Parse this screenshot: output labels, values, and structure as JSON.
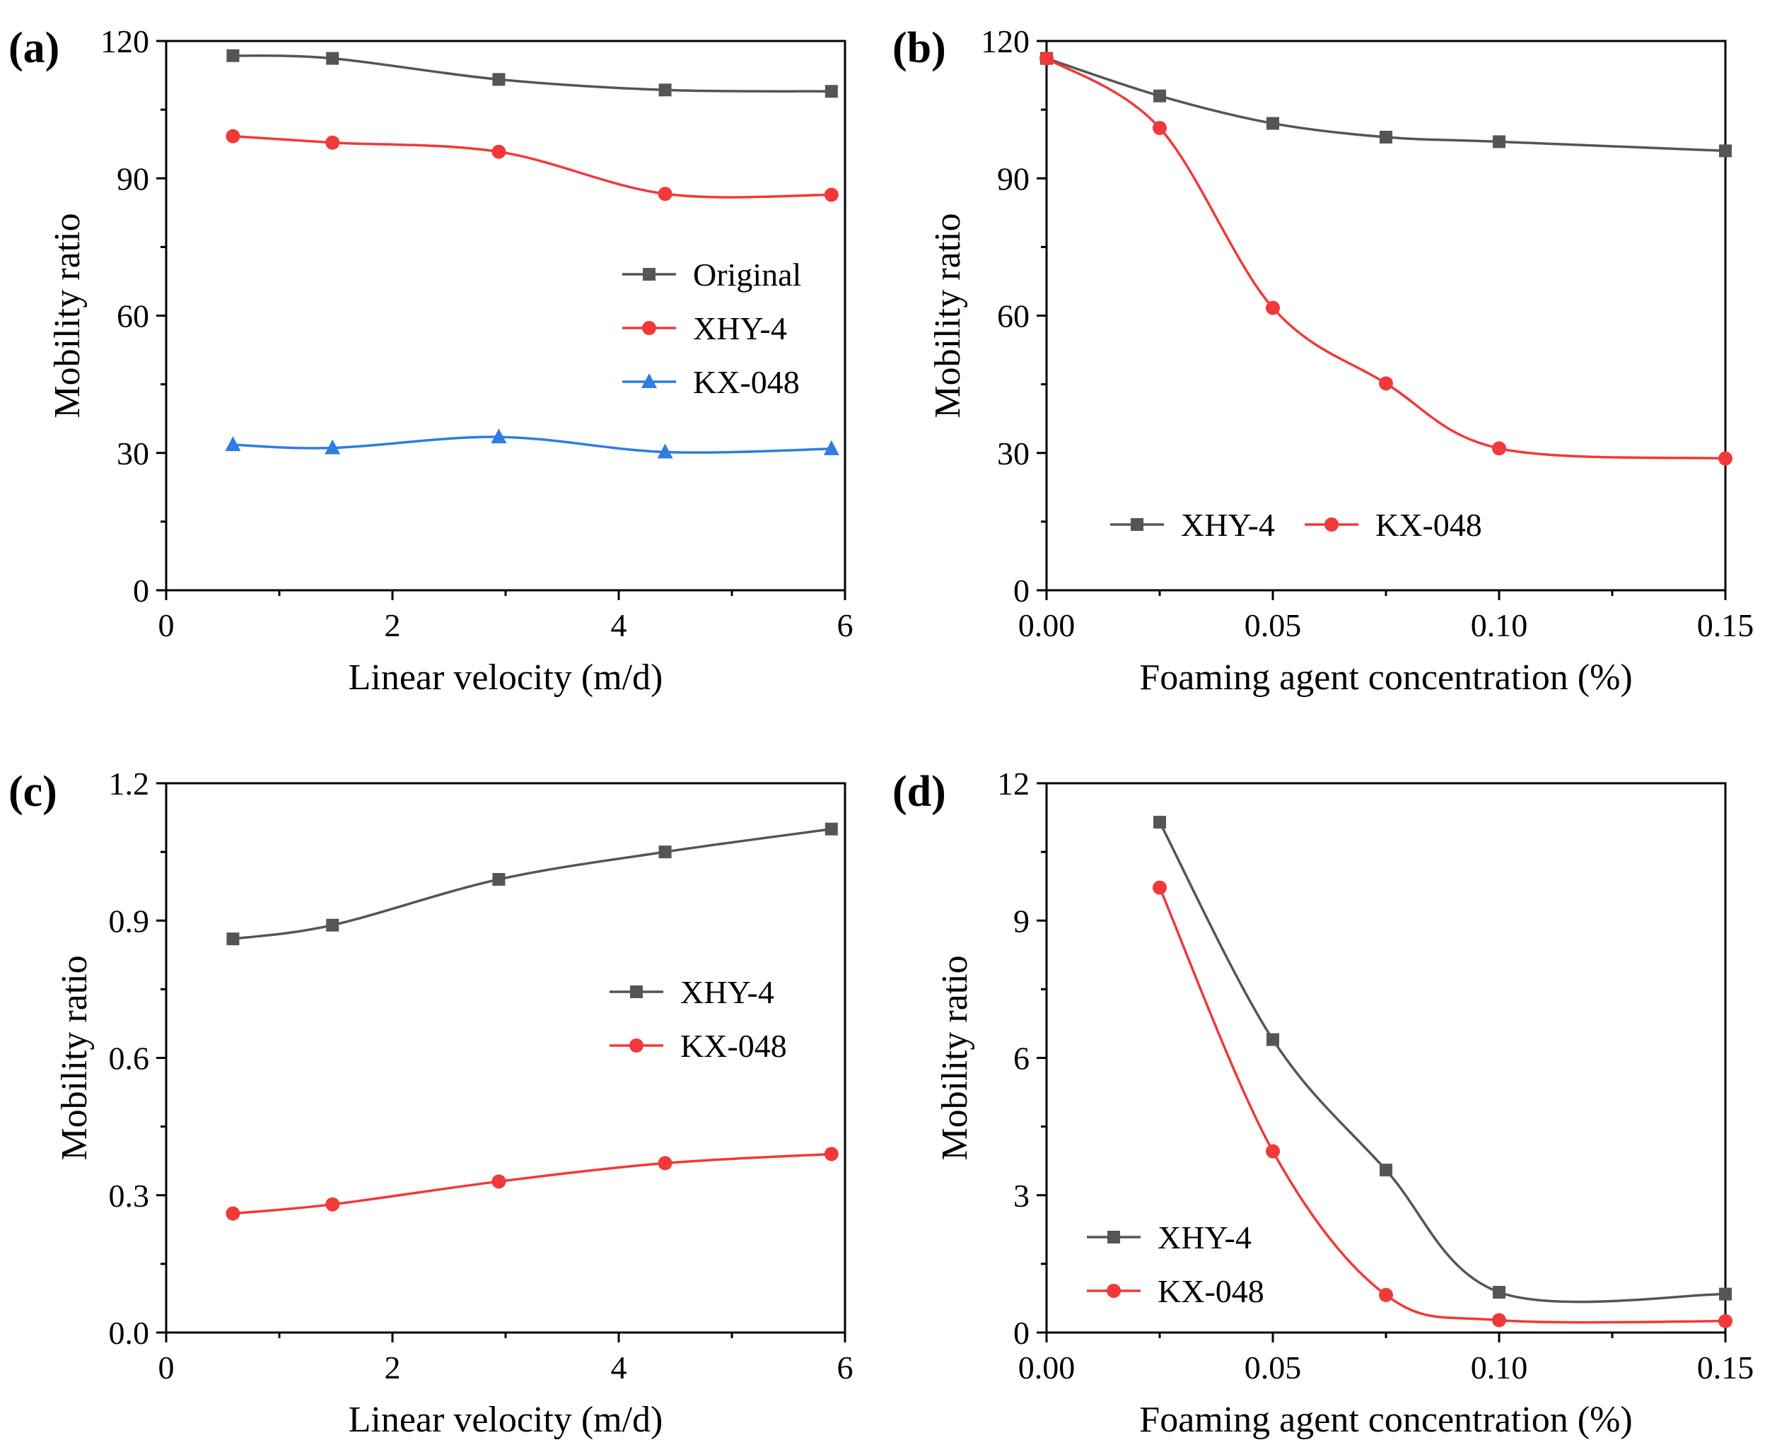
{
  "colors": {
    "gray": "#555555",
    "red": "#f0393a",
    "blue": "#2f7de0"
  },
  "chart_data": [
    {
      "panel": "(a)",
      "type": "line",
      "xlabel": "Linear velocity (m/d)",
      "ylabel": "Mobility ratio",
      "xlim": [
        0,
        6
      ],
      "ylim": [
        0,
        120
      ],
      "xticks": [
        "0",
        "2",
        "4",
        "6"
      ],
      "yticks": [
        "0",
        "30",
        "60",
        "90",
        "120"
      ],
      "legend_position": "center-right",
      "series": [
        {
          "name": "Original",
          "color": "gray",
          "marker": "square",
          "x": [
            0.59,
            1.47,
            2.94,
            4.41,
            5.88
          ],
          "y": [
            116.8,
            116.2,
            111.6,
            109.3,
            109.0
          ]
        },
        {
          "name": "XHY-4",
          "color": "red",
          "marker": "circle",
          "x": [
            0.59,
            1.47,
            2.94,
            4.41,
            5.88
          ],
          "y": [
            99.2,
            97.8,
            95.8,
            86.6,
            86.4
          ]
        },
        {
          "name": "KX-048",
          "color": "blue",
          "marker": "triangle",
          "x": [
            0.59,
            1.47,
            2.94,
            4.41,
            5.88
          ],
          "y": [
            31.8,
            31.1,
            33.5,
            30.2,
            30.9
          ]
        }
      ]
    },
    {
      "panel": "(b)",
      "type": "line",
      "xlabel": "Foaming agent concentration (%)",
      "ylabel": "Mobility ratio",
      "xlim": [
        0,
        0.15
      ],
      "ylim": [
        0,
        120
      ],
      "xticks": [
        "0.00",
        "0.05",
        "0.10",
        "0.15"
      ],
      "yticks": [
        "0",
        "30",
        "60",
        "90",
        "120"
      ],
      "legend_position": "bottom-left",
      "series": [
        {
          "name": "XHY-4",
          "color": "gray",
          "marker": "square",
          "x": [
            0,
            0.025,
            0.05,
            0.075,
            0.1,
            0.15
          ],
          "y": [
            116.2,
            108.0,
            102.0,
            99.0,
            98.0,
            96.0
          ]
        },
        {
          "name": "KX-048",
          "color": "red",
          "marker": "circle",
          "x": [
            0,
            0.025,
            0.05,
            0.075,
            0.1,
            0.15
          ],
          "y": [
            116.2,
            101.0,
            61.7,
            45.2,
            31.0,
            28.8
          ]
        }
      ]
    },
    {
      "panel": "(c)",
      "type": "line",
      "xlabel": "Linear velocity (m/d)",
      "ylabel": "Mobility ratio",
      "xlim": [
        0,
        6
      ],
      "ylim": [
        0,
        1.2
      ],
      "xticks": [
        "0",
        "2",
        "4",
        "6"
      ],
      "yticks": [
        "0.0",
        "0.3",
        "0.6",
        "0.9",
        "1.2"
      ],
      "legend_position": "center-right",
      "series": [
        {
          "name": "XHY-4",
          "color": "gray",
          "marker": "square",
          "x": [
            0.59,
            1.47,
            2.94,
            4.41,
            5.88
          ],
          "y": [
            0.86,
            0.89,
            0.99,
            1.05,
            1.1
          ]
        },
        {
          "name": "KX-048",
          "color": "red",
          "marker": "circle",
          "x": [
            0.59,
            1.47,
            2.94,
            4.41,
            5.88
          ],
          "y": [
            0.26,
            0.28,
            0.33,
            0.37,
            0.39
          ]
        }
      ]
    },
    {
      "panel": "(d)",
      "type": "line",
      "xlabel": "Foaming agent concentration (%)",
      "ylabel": "Mobility ratio",
      "xlim": [
        0,
        0.15
      ],
      "ylim": [
        0,
        12
      ],
      "xticks": [
        "0.00",
        "0.05",
        "0.10",
        "0.15"
      ],
      "yticks": [
        "0",
        "3",
        "6",
        "9",
        "12"
      ],
      "legend_position": "bottom-left",
      "series": [
        {
          "name": "XHY-4",
          "color": "gray",
          "marker": "square",
          "x": [
            0.025,
            0.05,
            0.075,
            0.1,
            0.15
          ],
          "y": [
            11.15,
            6.4,
            3.55,
            0.88,
            0.84
          ]
        },
        {
          "name": "KX-048",
          "color": "red",
          "marker": "circle",
          "x": [
            0.025,
            0.05,
            0.075,
            0.1,
            0.15
          ],
          "y": [
            9.72,
            3.96,
            0.82,
            0.27,
            0.25
          ]
        }
      ]
    }
  ]
}
